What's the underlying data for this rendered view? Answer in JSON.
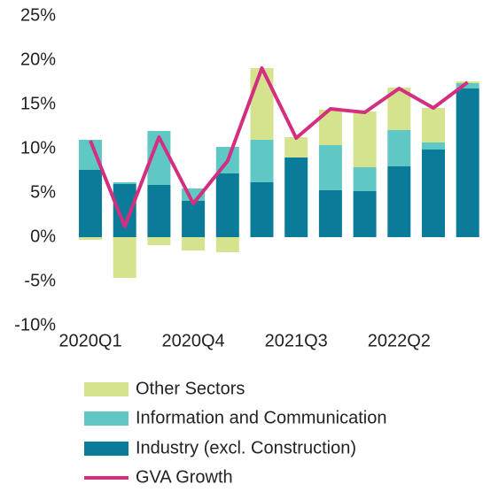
{
  "chart_data": {
    "type": "bar",
    "stacked": true,
    "categories": [
      "2020Q1",
      null,
      null,
      "2020Q4",
      null,
      null,
      "2021Q3",
      null,
      null,
      "2022Q2",
      null,
      null
    ],
    "series": [
      {
        "name": "Other Sectors",
        "color": "#d5e38f",
        "values": [
          -0.3,
          -4.6,
          -0.9,
          -1.5,
          -1.7,
          8.1,
          2.3,
          4.0,
          6.3,
          4.8,
          3.9,
          0.2
        ]
      },
      {
        "name": "Information and Communication",
        "color": "#5fc8c5",
        "values": [
          3.4,
          0.2,
          6.1,
          1.4,
          3.0,
          4.8,
          0.0,
          5.1,
          2.7,
          4.1,
          0.8,
          0.6
        ]
      },
      {
        "name": "Industry (excl. Construction)",
        "color": "#0a7c9a",
        "values": [
          7.6,
          6.0,
          5.9,
          4.1,
          7.2,
          6.2,
          9.0,
          5.3,
          5.2,
          8.0,
          9.9,
          16.8
        ]
      },
      {
        "name": "GVA Growth",
        "type": "line",
        "color": "#d42e80",
        "values": [
          10.9,
          1.2,
          11.3,
          3.8,
          8.6,
          19.1,
          11.2,
          14.5,
          14.1,
          16.8,
          14.6,
          17.5
        ]
      }
    ],
    "ylim": [
      -10,
      25
    ],
    "yticks": [
      {
        "value": -10,
        "label": "-10%"
      },
      {
        "value": -5,
        "label": "-5%"
      },
      {
        "value": 0,
        "label": "0%"
      },
      {
        "value": 5,
        "label": "5%"
      },
      {
        "value": 10,
        "label": "10%"
      },
      {
        "value": 15,
        "label": "15%"
      },
      {
        "value": 20,
        "label": "20%"
      },
      {
        "value": 25,
        "label": "25%"
      }
    ],
    "grid": false,
    "legend": "bottom"
  }
}
